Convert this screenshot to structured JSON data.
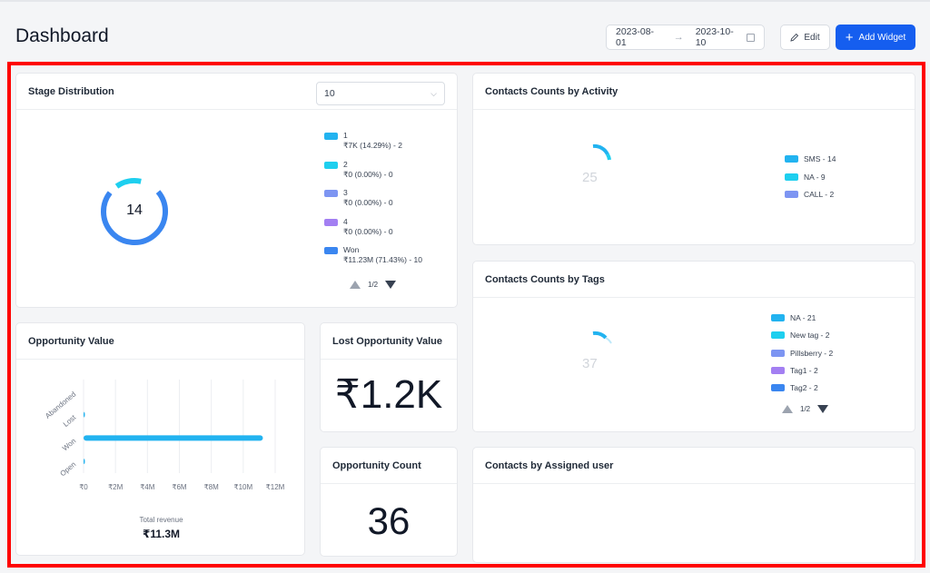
{
  "page": {
    "title": "Dashboard"
  },
  "header": {
    "date_from": "2023-08-01",
    "date_to": "2023-10-10",
    "edit_label": "Edit",
    "add_widget_label": "Add Widget"
  },
  "stage_distribution": {
    "title": "Stage Distribution",
    "select_value": "10",
    "center_value": "14",
    "legend": [
      {
        "name": "1",
        "detail": "₹7K (14.29%) - 2",
        "color": "#22b3f0"
      },
      {
        "name": "2",
        "detail": "₹0 (0.00%) - 0",
        "color": "#1ecfef"
      },
      {
        "name": "3",
        "detail": "₹0 (0.00%) - 0",
        "color": "#7d95f2"
      },
      {
        "name": "4",
        "detail": "₹0 (0.00%) - 0",
        "color": "#a37ff2"
      },
      {
        "name": "Won",
        "detail": "₹11.23M (71.43%) - 10",
        "color": "#3a86f0"
      }
    ],
    "pager": "1/2"
  },
  "contacts_by_activity": {
    "title": "Contacts Counts by Activity",
    "center_value": "25",
    "legend": [
      {
        "label": "SMS - 14",
        "color": "#22b3f0"
      },
      {
        "label": "NA - 9",
        "color": "#1ecfef"
      },
      {
        "label": "CALL - 2",
        "color": "#7d95f2"
      }
    ]
  },
  "contacts_by_tags": {
    "title": "Contacts Counts by Tags",
    "center_value": "37",
    "legend": [
      {
        "label": "NA - 21",
        "color": "#22b3f0"
      },
      {
        "label": "New tag - 2",
        "color": "#1ecfef"
      },
      {
        "label": "Pillsberry - 2",
        "color": "#7d95f2"
      },
      {
        "label": "Tag1 - 2",
        "color": "#a37ff2"
      },
      {
        "label": "Tag2 - 2",
        "color": "#3a86f0"
      }
    ],
    "pager": "1/2"
  },
  "opportunity_value": {
    "title": "Opportunity Value",
    "total_label": "Total revenue",
    "total_value": "₹11.3M"
  },
  "lost_opportunity": {
    "title": "Lost Opportunity Value",
    "value": "₹1.2K"
  },
  "opportunity_count": {
    "title": "Opportunity Count",
    "value": "36"
  },
  "contacts_by_user": {
    "title": "Contacts by Assigned user"
  },
  "chart_data": {
    "type": "bar",
    "orientation": "horizontal",
    "categories": [
      "Abandoned",
      "Lost",
      "Won",
      "Open"
    ],
    "values": [
      0,
      0.0012,
      11.23,
      0.007
    ],
    "x_ticks": [
      "₹0",
      "₹2M",
      "₹4M",
      "₹6M",
      "₹8M",
      "₹10M",
      "₹12M"
    ],
    "xlim": [
      0,
      12
    ],
    "bar_color": "#22b3f0",
    "grid": true
  }
}
